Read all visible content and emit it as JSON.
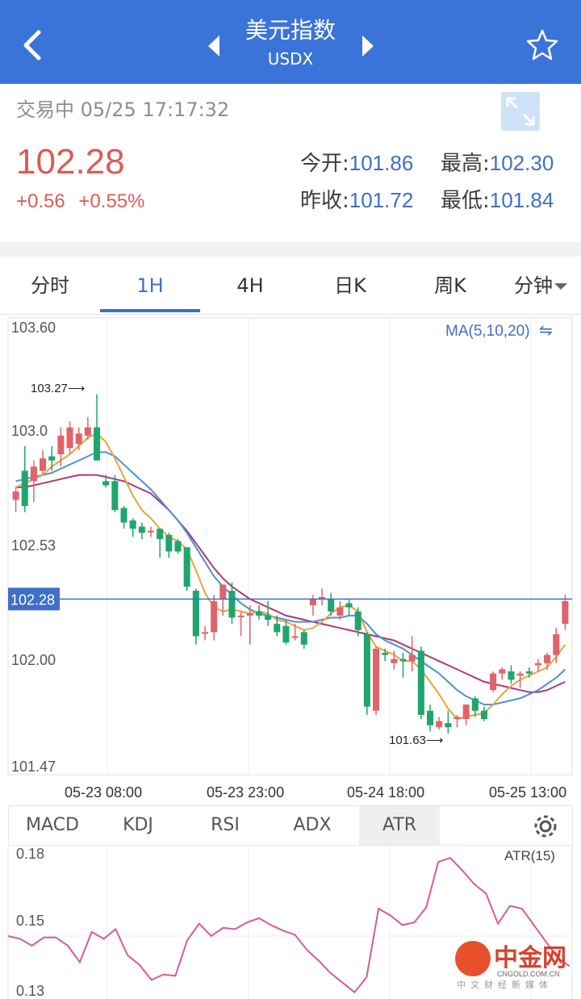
{
  "header": {
    "title": "美元指数",
    "subtitle": "USDX",
    "icons": {
      "back": "chevron-left-icon",
      "prev": "triangle-left-icon",
      "next": "triangle-right-icon",
      "favorite": "star-icon"
    },
    "color": "#3b74d8"
  },
  "quote": {
    "status_text": "交易中 05/25 17:17:32",
    "price": "102.28",
    "change": "+0.56",
    "change_pct": "+0.55%",
    "up_color": "#dc5b55",
    "open_label": "今开:",
    "open_value": "101.86",
    "high_label": "最高:",
    "high_value": "102.30",
    "prev_close_label": "昨收:",
    "prev_close_value": "101.72",
    "low_label": "最低:",
    "low_value": "101.84"
  },
  "period_tabs": [
    "分时",
    "1H",
    "4H",
    "日K",
    "周K",
    "分钟"
  ],
  "active_period": "1H",
  "chart_data": {
    "type": "candlestick",
    "ma_label": "MA(5,10,20)",
    "y_ticks": [
      "103.60",
      "103.0",
      "102.53",
      "102.00",
      "101.47"
    ],
    "ylim": [
      101.47,
      103.6
    ],
    "current_price_label": "102.28",
    "current_price": 102.28,
    "x_labels": [
      "05-23 08:00",
      "05-23 23:00",
      "05-24 18:00",
      "05-25 13:00"
    ],
    "annotations": {
      "high": "103.27",
      "low": "101.63"
    },
    "candles": [
      [
        102.76,
        102.82,
        102.7,
        102.8
      ],
      [
        102.9,
        103.02,
        102.7,
        102.73
      ],
      [
        102.85,
        102.95,
        102.75,
        102.92
      ],
      [
        102.9,
        103.0,
        102.88,
        102.96
      ],
      [
        102.97,
        103.02,
        102.9,
        102.95
      ],
      [
        102.98,
        103.11,
        102.92,
        103.07
      ],
      [
        103.01,
        103.14,
        102.98,
        103.11
      ],
      [
        103.03,
        103.11,
        103.0,
        103.08
      ],
      [
        103.07,
        103.16,
        103.05,
        103.11
      ],
      [
        103.11,
        103.27,
        102.96,
        102.95
      ],
      [
        102.85,
        102.88,
        102.82,
        102.83
      ],
      [
        102.85,
        102.88,
        102.7,
        102.71
      ],
      [
        102.72,
        102.73,
        102.62,
        102.65
      ],
      [
        102.66,
        102.67,
        102.58,
        102.62
      ],
      [
        102.63,
        102.65,
        102.57,
        102.6
      ],
      [
        102.61,
        102.63,
        102.58,
        102.61
      ],
      [
        102.62,
        102.62,
        102.48,
        102.57
      ],
      [
        102.59,
        102.6,
        102.48,
        102.51
      ],
      [
        102.56,
        102.57,
        102.5,
        102.51
      ],
      [
        102.53,
        102.53,
        102.32,
        102.34
      ],
      [
        102.32,
        102.33,
        102.06,
        102.1
      ],
      [
        102.12,
        102.15,
        102.08,
        102.12
      ],
      [
        102.12,
        102.3,
        102.08,
        102.27
      ],
      [
        102.28,
        102.35,
        102.2,
        102.35
      ],
      [
        102.32,
        102.36,
        102.16,
        102.19
      ],
      [
        102.2,
        102.22,
        102.1,
        102.2
      ],
      [
        102.2,
        102.25,
        102.06,
        102.21
      ],
      [
        102.22,
        102.25,
        102.18,
        102.2
      ],
      [
        102.2,
        102.27,
        102.15,
        102.18
      ],
      [
        102.16,
        102.2,
        102.1,
        102.12
      ],
      [
        102.15,
        102.18,
        102.06,
        102.07
      ],
      [
        102.1,
        102.16,
        102.08,
        102.1
      ],
      [
        102.12,
        102.13,
        102.04,
        102.06
      ],
      [
        102.25,
        102.3,
        102.2,
        102.28
      ],
      [
        102.28,
        102.33,
        102.25,
        102.29
      ],
      [
        102.28,
        102.31,
        102.2,
        102.22
      ],
      [
        102.2,
        102.27,
        102.18,
        102.24
      ],
      [
        102.26,
        102.28,
        102.2,
        102.24
      ],
      [
        102.22,
        102.24,
        102.1,
        102.13
      ],
      [
        102.11,
        102.12,
        101.72,
        101.76
      ],
      [
        101.74,
        102.05,
        101.72,
        102.04
      ],
      [
        102.02,
        102.04,
        101.98,
        102.01
      ],
      [
        101.97,
        102.03,
        101.94,
        101.99
      ],
      [
        101.99,
        102.02,
        101.9,
        101.98
      ],
      [
        101.98,
        102.1,
        101.93,
        102.01
      ],
      [
        102.03,
        102.05,
        101.7,
        101.72
      ],
      [
        101.74,
        101.77,
        101.64,
        101.67
      ],
      [
        101.66,
        101.71,
        101.65,
        101.69
      ],
      [
        101.68,
        101.74,
        101.63,
        101.66
      ],
      [
        101.7,
        101.72,
        101.66,
        101.71
      ],
      [
        101.7,
        101.77,
        101.67,
        101.77
      ],
      [
        101.8,
        101.81,
        101.71,
        101.74
      ],
      [
        101.74,
        101.76,
        101.69,
        101.7
      ],
      [
        101.84,
        101.93,
        101.83,
        101.92
      ],
      [
        101.92,
        101.95,
        101.89,
        101.94
      ],
      [
        101.93,
        101.96,
        101.87,
        101.89
      ],
      [
        101.91,
        101.93,
        101.85,
        101.92
      ],
      [
        101.93,
        101.95,
        101.9,
        101.92
      ],
      [
        101.96,
        101.99,
        101.93,
        101.97
      ],
      [
        101.97,
        102.02,
        101.94,
        102.01
      ],
      [
        102.01,
        102.14,
        101.97,
        102.11
      ],
      [
        102.16,
        102.3,
        102.13,
        102.27
      ]
    ],
    "ma5": [
      102.82,
      102.84,
      102.86,
      102.88,
      102.92,
      102.95,
      102.98,
      103.02,
      103.06,
      103.08,
      103.04,
      102.96,
      102.87,
      102.78,
      102.71,
      102.67,
      102.62,
      102.58,
      102.56,
      102.52,
      102.42,
      102.31,
      102.24,
      102.22,
      102.23,
      102.22,
      102.21,
      102.22,
      102.21,
      102.18,
      102.17,
      102.15,
      102.13,
      102.14,
      102.17,
      102.21,
      102.24,
      102.25,
      102.22,
      102.12,
      102.05,
      102.03,
      102.01,
      101.98,
      101.98,
      101.94,
      101.88,
      101.82,
      101.75,
      101.7,
      101.71,
      101.72,
      101.73,
      101.77,
      101.82,
      101.86,
      101.89,
      101.91,
      101.93,
      101.95,
      102.0,
      102.06
    ],
    "ma10": [
      102.85,
      102.86,
      102.87,
      102.88,
      102.89,
      102.91,
      102.93,
      102.95,
      102.97,
      102.99,
      102.99,
      102.97,
      102.93,
      102.89,
      102.85,
      102.81,
      102.76,
      102.71,
      102.66,
      102.6,
      102.53,
      102.46,
      102.39,
      102.34,
      102.3,
      102.26,
      102.23,
      102.21,
      102.2,
      102.19,
      102.18,
      102.17,
      102.17,
      102.17,
      102.18,
      102.19,
      102.19,
      102.2,
      102.2,
      102.16,
      102.11,
      102.08,
      102.06,
      102.04,
      102.01,
      101.98,
      101.95,
      101.92,
      101.88,
      101.84,
      101.81,
      101.79,
      101.77,
      101.77,
      101.78,
      101.79,
      101.8,
      101.82,
      101.84,
      101.87,
      101.9,
      101.94
    ],
    "ma20": [
      102.82,
      102.82,
      102.83,
      102.84,
      102.85,
      102.86,
      102.87,
      102.88,
      102.88,
      102.88,
      102.87,
      102.86,
      102.85,
      102.83,
      102.81,
      102.79,
      102.75,
      102.71,
      102.66,
      102.61,
      102.55,
      102.49,
      102.43,
      102.38,
      102.34,
      102.31,
      102.28,
      102.26,
      102.24,
      102.22,
      102.2,
      102.19,
      102.18,
      102.17,
      102.16,
      102.15,
      102.14,
      102.13,
      102.12,
      102.11,
      102.1,
      102.09,
      102.08,
      102.06,
      102.04,
      102.02,
      102.0,
      101.98,
      101.96,
      101.94,
      101.92,
      101.9,
      101.88,
      101.87,
      101.86,
      101.85,
      101.84,
      101.83,
      101.83,
      101.84,
      101.86,
      101.88
    ]
  },
  "indicator_tabs": [
    "MACD",
    "KDJ",
    "RSI",
    "ADX",
    "ATR"
  ],
  "active_indicator": "ATR",
  "indicator": {
    "label": "ATR(15)",
    "y_ticks": [
      "0.18",
      "0.15",
      "0.13"
    ],
    "ylim": [
      0.13,
      0.18
    ],
    "values": [
      0.15,
      0.149,
      0.1465,
      0.1495,
      0.1495,
      0.1465,
      0.1405,
      0.1515,
      0.149,
      0.1525,
      0.143,
      0.1395,
      0.134,
      0.136,
      0.1355,
      0.1485,
      0.1545,
      0.15,
      0.153,
      0.1525,
      0.155,
      0.1565,
      0.154,
      0.152,
      0.1505,
      0.145,
      0.141,
      0.1365,
      0.133,
      0.1295,
      0.135,
      0.16,
      0.1575,
      0.154,
      0.155,
      0.1605,
      0.177,
      0.1785,
      0.174,
      0.169,
      0.1655,
      0.1545,
      0.161,
      0.16,
      0.154,
      0.148,
      0.142,
      0.139
    ]
  },
  "watermark": {
    "brand": "中金网",
    "url": "CNGOLD.COM.CN",
    "tagline": "中文财经新媒体"
  },
  "colors": {
    "up": "#e0636b",
    "down": "#1fa56e",
    "ma5": "#e6a53a",
    "ma10": "#4f8fd6",
    "ma20": "#b0367a",
    "price_line": "#3f6fc6",
    "atr_line": "#d35b9e",
    "accent": "#3f6fc6"
  }
}
